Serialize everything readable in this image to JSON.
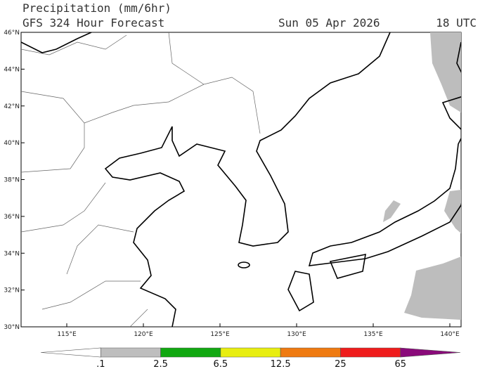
{
  "header": {
    "title": "Precipitation (mm/6hr)",
    "model": "GFS 324 Hour Forecast",
    "date": "Sun 05 Apr 2026",
    "time": "18 UTC"
  },
  "map": {
    "lat_labels": [
      "30°N",
      "32°N",
      "34°N",
      "36°N",
      "38°N",
      "40°N",
      "42°N",
      "44°N",
      "46°N"
    ],
    "lon_labels": [
      "115°E",
      "120°E",
      "125°E",
      "130°E",
      "135°E",
      "140°E"
    ]
  },
  "colorbar": {
    "labels": [
      ".1",
      "2.5",
      "6.5",
      "12.5",
      "25",
      "65"
    ],
    "colors": [
      "#ffffff",
      "#bebebe",
      "#11a811",
      "#e8ee10",
      "#ef7a10",
      "#ef1c1c",
      "#8a0a7a"
    ]
  }
}
